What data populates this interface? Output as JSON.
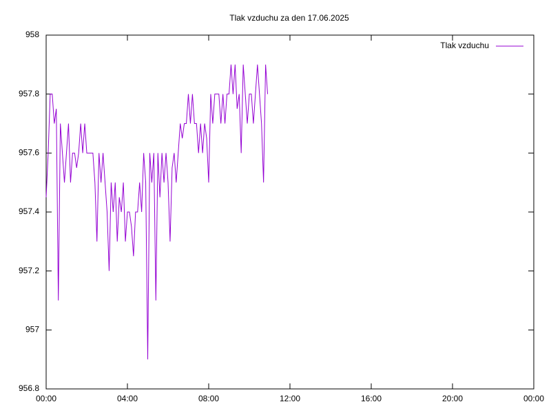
{
  "chart_data": {
    "type": "line",
    "title": "Tlak vzduchu za den 17.06.2025",
    "x": [
      0,
      0.1,
      0.2,
      0.3,
      0.4,
      0.5,
      0.6,
      0.7,
      0.8,
      0.9,
      1,
      1.1,
      1.2,
      1.3,
      1.4,
      1.5,
      1.6,
      1.7,
      1.8,
      1.9,
      2,
      2.1,
      2.2,
      2.3,
      2.4,
      2.5,
      2.6,
      2.7,
      2.8,
      2.9,
      3,
      3.1,
      3.2,
      3.3,
      3.4,
      3.5,
      3.6,
      3.7,
      3.8,
      3.9,
      4,
      4.1,
      4.2,
      4.3,
      4.4,
      4.5,
      4.6,
      4.7,
      4.8,
      4.9,
      5,
      5.1,
      5.2,
      5.3,
      5.4,
      5.5,
      5.6,
      5.7,
      5.8,
      5.9,
      6,
      6.1,
      6.2,
      6.3,
      6.4,
      6.5,
      6.6,
      6.7,
      6.8,
      6.9,
      7,
      7.1,
      7.2,
      7.3,
      7.4,
      7.5,
      7.6,
      7.7,
      7.8,
      7.9,
      8,
      8.1,
      8.2,
      8.3,
      8.4,
      8.5,
      8.6,
      8.7,
      8.8,
      8.9,
      9,
      9.1,
      9.2,
      9.3,
      9.4,
      9.5,
      9.6,
      9.7,
      9.8,
      9.9,
      10,
      10.1,
      10.2,
      10.3,
      10.4,
      10.5,
      10.6,
      10.7,
      10.8,
      10.9
    ],
    "series": [
      {
        "name": "Tlak vzduchu",
        "color": "#9400d3",
        "values": [
          957.45,
          957.6,
          957.8,
          957.8,
          957.7,
          957.75,
          957.1,
          957.7,
          957.6,
          957.5,
          957.6,
          957.7,
          957.5,
          957.6,
          957.6,
          957.55,
          957.6,
          957.7,
          957.6,
          957.7,
          957.6,
          957.6,
          957.6,
          957.6,
          957.5,
          957.3,
          957.6,
          957.5,
          957.6,
          957.5,
          957.4,
          957.2,
          957.5,
          957.4,
          957.5,
          957.3,
          957.45,
          957.4,
          957.5,
          957.3,
          957.4,
          957.4,
          957.35,
          957.25,
          957.4,
          957.4,
          957.5,
          957.4,
          957.6,
          957.5,
          956.9,
          957.6,
          957.5,
          957.6,
          957.1,
          957.6,
          957.45,
          957.6,
          957.5,
          957.6,
          957.5,
          957.3,
          957.55,
          957.6,
          957.5,
          957.6,
          957.7,
          957.65,
          957.7,
          957.7,
          957.8,
          957.7,
          957.8,
          957.7,
          957.7,
          957.6,
          957.7,
          957.6,
          957.7,
          957.65,
          957.5,
          957.8,
          957.7,
          957.8,
          957.8,
          957.8,
          957.7,
          957.8,
          957.7,
          957.8,
          957.8,
          957.9,
          957.8,
          957.9,
          957.75,
          957.8,
          957.6,
          957.9,
          957.8,
          957.7,
          957.8,
          957.8,
          957.7,
          957.8,
          957.9,
          957.8,
          957.7,
          957.5,
          957.9,
          957.8
        ]
      }
    ],
    "xlim": [
      0,
      24
    ],
    "xticks": [
      {
        "value": 0,
        "label": "00:00"
      },
      {
        "value": 4,
        "label": "04:00"
      },
      {
        "value": 8,
        "label": "08:00"
      },
      {
        "value": 12,
        "label": "12:00"
      },
      {
        "value": 16,
        "label": "16:00"
      },
      {
        "value": 20,
        "label": "20:00"
      },
      {
        "value": 24,
        "label": "00:00"
      }
    ],
    "ylim": [
      956.8,
      958
    ],
    "yticks": [
      956.8,
      957,
      957.2,
      957.4,
      957.6,
      957.8,
      958
    ],
    "legend": "top-right"
  }
}
